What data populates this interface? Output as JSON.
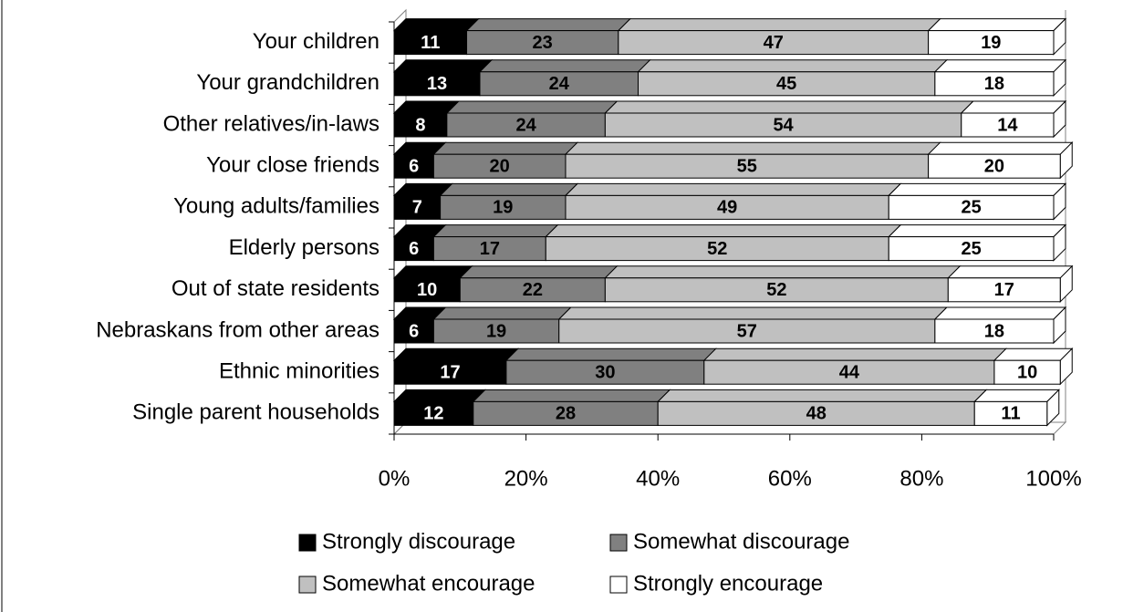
{
  "chart_data": {
    "type": "stacked-bar-horizontal",
    "categories": [
      "Your children",
      "Your grandchildren",
      "Other relatives/in-laws",
      "Your close friends",
      "Young adults/families",
      "Elderly persons",
      "Out of state residents",
      "Nebraskans from other areas",
      "Ethnic minorities",
      "Single parent households"
    ],
    "series": [
      {
        "name": "Strongly discourage",
        "color": "#000000",
        "label_color": "#ffffff",
        "values": [
          11,
          13,
          8,
          6,
          7,
          6,
          10,
          6,
          17,
          12
        ]
      },
      {
        "name": "Somewhat discourage",
        "color": "#808080",
        "label_color": "#000000",
        "values": [
          23,
          24,
          24,
          20,
          19,
          17,
          22,
          19,
          30,
          28
        ]
      },
      {
        "name": "Somewhat encourage",
        "color": "#c0c0c0",
        "label_color": "#000000",
        "values": [
          47,
          45,
          54,
          55,
          49,
          52,
          52,
          57,
          44,
          48
        ]
      },
      {
        "name": "Strongly encourage",
        "color": "#ffffff",
        "label_color": "#000000",
        "values": [
          19,
          18,
          14,
          20,
          25,
          25,
          17,
          18,
          10,
          11
        ]
      }
    ],
    "xlim": [
      0,
      100
    ],
    "xticks": [
      {
        "value": 0,
        "label": "0%"
      },
      {
        "value": 20,
        "label": "20%"
      },
      {
        "value": 40,
        "label": "40%"
      },
      {
        "value": 60,
        "label": "60%"
      },
      {
        "value": 80,
        "label": "80%"
      },
      {
        "value": 100,
        "label": "100%"
      }
    ]
  }
}
